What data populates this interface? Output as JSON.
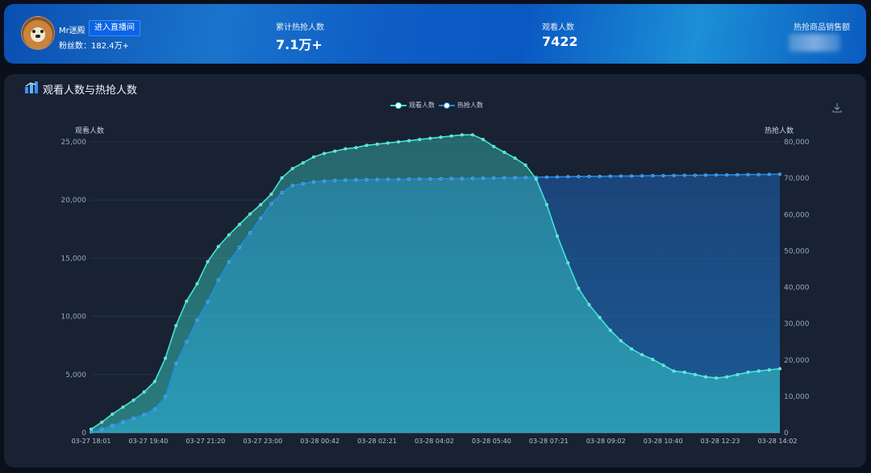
{
  "header": {
    "user_name": "Mr迷殿",
    "live_button": "进入直播间",
    "fans": "粉丝数：182.4万+",
    "stats": [
      {
        "label": "累计热抢人数",
        "value": "7.1万+"
      },
      {
        "label": "观看人数",
        "value": "7422"
      },
      {
        "label": "热抢商品销售额",
        "value": ""
      }
    ]
  },
  "panel": {
    "title": "观看人数与热抢人数",
    "icon": "bar-chart-icon",
    "download_icon": "download-icon"
  },
  "colors": {
    "watch": "#3ee6d6",
    "hot": "#1e8be6",
    "header": "#0d5fc2",
    "panel": "#182233"
  },
  "chart_data": {
    "type": "area",
    "legend": [
      "观看人数",
      "热抢人数"
    ],
    "legend_position": "top-center",
    "y_left_label": "观看人数",
    "y_right_label": "热抢人数",
    "y_left_lim": [
      0,
      25000
    ],
    "y_right_lim": [
      0,
      80000
    ],
    "y_left_ticks": [
      "0",
      "5,000",
      "10,000",
      "15,000",
      "20,000",
      "25,000"
    ],
    "y_right_ticks": [
      "0",
      "10,000",
      "20,000",
      "30,000",
      "40,000",
      "50,000",
      "60,000",
      "70,000",
      "80,000"
    ],
    "x_tick_labels": [
      "03-27 18:01",
      "03-27 19:40",
      "03-27 21:20",
      "03-27 23:00",
      "03-28 00:42",
      "03-28 02:21",
      "03-28 04:02",
      "03-28 05:40",
      "03-28 07:21",
      "03-28 09:02",
      "03-28 10:40",
      "03-28 12:23",
      "03-28 14:02"
    ],
    "grid": true,
    "series": [
      {
        "name": "观看人数",
        "axis": "left",
        "values": [
          300,
          900,
          1600,
          2200,
          2800,
          3500,
          4400,
          6400,
          9200,
          11300,
          12800,
          14700,
          16000,
          17000,
          17900,
          18800,
          19600,
          20500,
          21900,
          22700,
          23200,
          23700,
          24000,
          24200,
          24400,
          24500,
          24700,
          24800,
          24900,
          25000,
          25100,
          25200,
          25300,
          25400,
          25500,
          25600,
          25600,
          25200,
          24600,
          24100,
          23600,
          23000,
          21800,
          19600,
          16900,
          14600,
          12400,
          11000,
          9900,
          8800,
          7900,
          7200,
          6700,
          6300,
          5800,
          5300,
          5200,
          5000,
          4800,
          4700,
          4800,
          5000,
          5200,
          5300,
          5400,
          5500
        ]
      },
      {
        "name": "热抢人数",
        "axis": "right",
        "values": [
          200,
          1000,
          2000,
          3000,
          4000,
          5000,
          6500,
          10000,
          19000,
          25000,
          31000,
          36000,
          42000,
          47000,
          51000,
          55000,
          59000,
          63000,
          66000,
          68000,
          68500,
          69000,
          69200,
          69400,
          69500,
          69550,
          69600,
          69650,
          69700,
          69700,
          69750,
          69800,
          69800,
          69850,
          69900,
          69900,
          69950,
          70000,
          70050,
          70100,
          70150,
          70200,
          70250,
          70300,
          70350,
          70400,
          70450,
          70500,
          70500,
          70550,
          70600,
          70600,
          70650,
          70700,
          70700,
          70750,
          70800,
          70800,
          70850,
          70900,
          70900,
          70950,
          71000,
          71000,
          71050,
          71100
        ]
      }
    ]
  }
}
